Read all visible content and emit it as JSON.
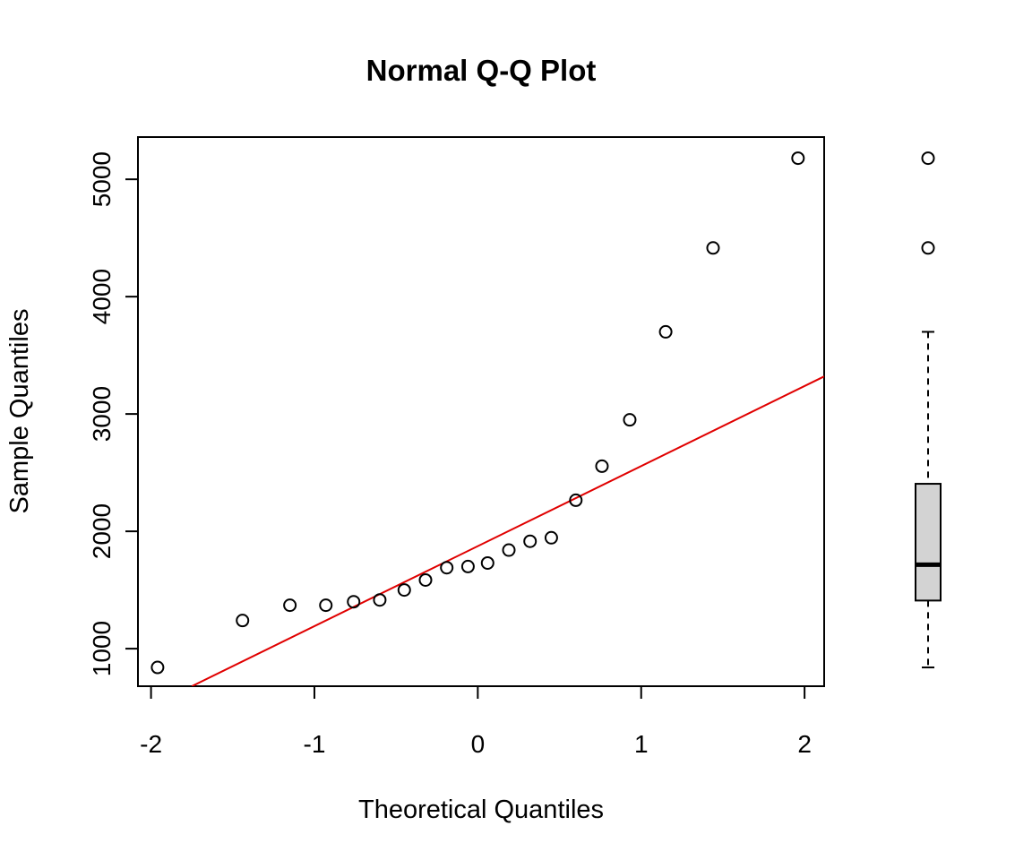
{
  "chart_data": [
    {
      "type": "scatter",
      "title": "Normal Q-Q Plot",
      "xlabel": "Theoretical Quantiles",
      "ylabel": "Sample Quantiles",
      "xlim": [
        -2.08,
        2.12
      ],
      "ylim": [
        680,
        5360
      ],
      "grid": false,
      "x_ticks": [
        -2,
        -1,
        0,
        1,
        2
      ],
      "y_ticks": [
        1000,
        2000,
        3000,
        4000,
        5000
      ],
      "x_tick_labels": [
        "-2",
        "-1",
        "0",
        "1",
        "2"
      ],
      "y_tick_labels": [
        "1000",
        "2000",
        "3000",
        "4000",
        "5000"
      ],
      "points": [
        {
          "x": -1.96,
          "y": 840
        },
        {
          "x": -1.44,
          "y": 1240
        },
        {
          "x": -1.15,
          "y": 1370
        },
        {
          "x": -0.93,
          "y": 1370
        },
        {
          "x": -0.76,
          "y": 1400
        },
        {
          "x": -0.6,
          "y": 1415
        },
        {
          "x": -0.45,
          "y": 1500
        },
        {
          "x": -0.32,
          "y": 1585
        },
        {
          "x": -0.19,
          "y": 1690
        },
        {
          "x": -0.06,
          "y": 1700
        },
        {
          "x": 0.06,
          "y": 1730
        },
        {
          "x": 0.19,
          "y": 1840
        },
        {
          "x": 0.32,
          "y": 1915
        },
        {
          "x": 0.45,
          "y": 1945
        },
        {
          "x": 0.6,
          "y": 2265
        },
        {
          "x": 0.76,
          "y": 2555
        },
        {
          "x": 0.93,
          "y": 2950
        },
        {
          "x": 1.15,
          "y": 3700
        },
        {
          "x": 1.44,
          "y": 4415
        },
        {
          "x": 1.96,
          "y": 5180
        }
      ],
      "reference_line": {
        "x1": -1.75,
        "y1": 680,
        "x2": 2.12,
        "y2": 3320,
        "color": "#e00000"
      }
    },
    {
      "type": "box",
      "orientation": "vertical",
      "whisker_low": 840,
      "q1": 1410,
      "median": 1715,
      "q3": 2405,
      "whisker_high": 3700,
      "outliers": [
        4415,
        5180
      ],
      "fill": "#d3d3d3"
    }
  ]
}
